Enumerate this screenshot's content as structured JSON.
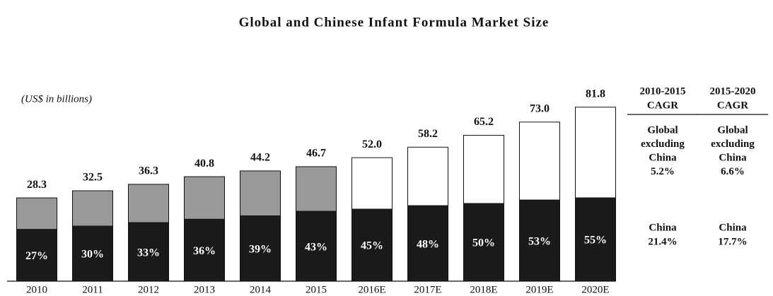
{
  "chart_data": {
    "type": "bar",
    "title": "Global and Chinese Infant Formula Market Size",
    "subtitle": "(US$ in billions)",
    "categories": [
      "2010",
      "2011",
      "2012",
      "2013",
      "2014",
      "2015",
      "2016E",
      "2017E",
      "2018E",
      "2019E",
      "2020E"
    ],
    "values": [
      28.3,
      32.5,
      36.3,
      40.8,
      44.2,
      46.7,
      52.0,
      58.2,
      65.2,
      73.0,
      81.8
    ],
    "value_labels": [
      "28.3",
      "32.5",
      "36.3",
      "40.8",
      "44.2",
      "46.7",
      "52.0",
      "58.2",
      "65.2",
      "73.0",
      "81.8"
    ],
    "china_share": [
      27,
      30,
      33,
      36,
      39,
      43,
      45,
      48,
      50,
      53,
      55
    ],
    "china_share_labels": [
      "27%",
      "30%",
      "33%",
      "36%",
      "39%",
      "43%",
      "45%",
      "48%",
      "50%",
      "53%",
      "55%"
    ],
    "china_color": "#1a1a1a",
    "top_colors": [
      "#999999",
      "#999999",
      "#999999",
      "#999999",
      "#999999",
      "#999999",
      "#ffffff",
      "#ffffff",
      "#ffffff",
      "#ffffff",
      "#ffffff"
    ]
  },
  "cagr_panel": [
    {
      "header": [
        "2010-2015",
        "CAGR"
      ],
      "global": [
        "Global",
        "excluding",
        "China",
        "5.2%"
      ],
      "china": [
        "China",
        "21.4%"
      ]
    },
    {
      "header": [
        "2015-2020",
        "CAGR"
      ],
      "global": [
        "Global",
        "excluding",
        "China",
        "6.6%"
      ],
      "china": [
        "China",
        "17.7%"
      ]
    }
  ]
}
